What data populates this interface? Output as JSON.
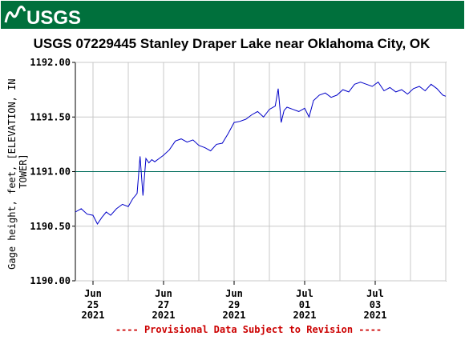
{
  "header": {
    "logo_text": "USGS",
    "bar_color": "#00703c"
  },
  "chart_data": {
    "type": "line",
    "title": "USGS 07229445 Stanley Draper Lake near Oklahoma City, OK",
    "ylabel": "Gage height, feet, [ELEVATION, IN TOWER]",
    "xlabel": "",
    "ylim": [
      1190.0,
      1192.0
    ],
    "xlim": [
      "2021-06-24T12:00",
      "2021-07-05T00:00"
    ],
    "yticks": [
      "1190.00",
      "1190.50",
      "1191.00",
      "1191.50",
      "1192.00"
    ],
    "xticks": [
      {
        "t": "2021-06-25T00:00",
        "month": "Jun",
        "day": "25",
        "year": "2021"
      },
      {
        "t": "2021-06-27T00:00",
        "month": "Jun",
        "day": "27",
        "year": "2021"
      },
      {
        "t": "2021-06-29T00:00",
        "month": "Jun",
        "day": "29",
        "year": "2021"
      },
      {
        "t": "2021-07-01T00:00",
        "month": "Jul",
        "day": "01",
        "year": "2021"
      },
      {
        "t": "2021-07-03T00:00",
        "month": "Jul",
        "day": "03",
        "year": "2021"
      }
    ],
    "reference_line": {
      "y": 1191.0,
      "color": "#006d5b"
    },
    "series": [
      {
        "color": "#0000c8",
        "x": [
          "2021-06-24T12:00",
          "2021-06-24T16:00",
          "2021-06-24T20:00",
          "2021-06-25T00:00",
          "2021-06-25T03:00",
          "2021-06-25T06:00",
          "2021-06-25T09:00",
          "2021-06-25T12:00",
          "2021-06-25T16:00",
          "2021-06-25T20:00",
          "2021-06-26T00:00",
          "2021-06-26T03:00",
          "2021-06-26T06:00",
          "2021-06-26T08:00",
          "2021-06-26T10:00",
          "2021-06-26T12:00",
          "2021-06-26T14:00",
          "2021-06-26T16:00",
          "2021-06-26T18:00",
          "2021-06-26T21:00",
          "2021-06-27T00:00",
          "2021-06-27T04:00",
          "2021-06-27T08:00",
          "2021-06-27T12:00",
          "2021-06-27T16:00",
          "2021-06-27T20:00",
          "2021-06-28T00:00",
          "2021-06-28T04:00",
          "2021-06-28T08:00",
          "2021-06-28T12:00",
          "2021-06-28T16:00",
          "2021-06-28T20:00",
          "2021-06-29T00:00",
          "2021-06-29T04:00",
          "2021-06-29T08:00",
          "2021-06-29T12:00",
          "2021-06-29T16:00",
          "2021-06-29T20:00",
          "2021-06-30T00:00",
          "2021-06-30T04:00",
          "2021-06-30T06:00",
          "2021-06-30T08:00",
          "2021-06-30T10:00",
          "2021-06-30T12:00",
          "2021-06-30T16:00",
          "2021-06-30T20:00",
          "2021-07-01T00:00",
          "2021-07-01T03:00",
          "2021-07-01T06:00",
          "2021-07-01T10:00",
          "2021-07-01T14:00",
          "2021-07-01T18:00",
          "2021-07-01T22:00",
          "2021-07-02T02:00",
          "2021-07-02T06:00",
          "2021-07-02T10:00",
          "2021-07-02T14:00",
          "2021-07-02T18:00",
          "2021-07-02T22:00",
          "2021-07-03T02:00",
          "2021-07-03T06:00",
          "2021-07-03T10:00",
          "2021-07-03T14:00",
          "2021-07-03T18:00",
          "2021-07-03T22:00",
          "2021-07-04T02:00",
          "2021-07-04T06:00",
          "2021-07-04T10:00",
          "2021-07-04T14:00",
          "2021-07-04T18:00",
          "2021-07-04T22:00",
          "2021-07-05T00:00"
        ],
        "y": [
          1190.63,
          1190.66,
          1190.61,
          1190.6,
          1190.52,
          1190.58,
          1190.63,
          1190.6,
          1190.66,
          1190.7,
          1190.68,
          1190.75,
          1190.8,
          1191.14,
          1190.78,
          1191.12,
          1191.08,
          1191.11,
          1191.09,
          1191.12,
          1191.15,
          1191.2,
          1191.28,
          1191.3,
          1191.27,
          1191.29,
          1191.24,
          1191.22,
          1191.19,
          1191.25,
          1191.26,
          1191.35,
          1191.45,
          1191.46,
          1191.48,
          1191.52,
          1191.55,
          1191.5,
          1191.57,
          1191.6,
          1191.76,
          1191.45,
          1191.56,
          1191.59,
          1191.57,
          1191.55,
          1191.58,
          1191.5,
          1191.65,
          1191.7,
          1191.72,
          1191.68,
          1191.7,
          1191.75,
          1191.73,
          1191.8,
          1191.82,
          1191.8,
          1191.78,
          1191.82,
          1191.74,
          1191.77,
          1191.73,
          1191.75,
          1191.71,
          1191.76,
          1191.78,
          1191.74,
          1191.8,
          1191.76,
          1191.7,
          1191.69
        ]
      }
    ]
  },
  "footer": {
    "provisional_text": "---- Provisional Data Subject to Revision ----",
    "provisional_color": "#cc0000"
  }
}
